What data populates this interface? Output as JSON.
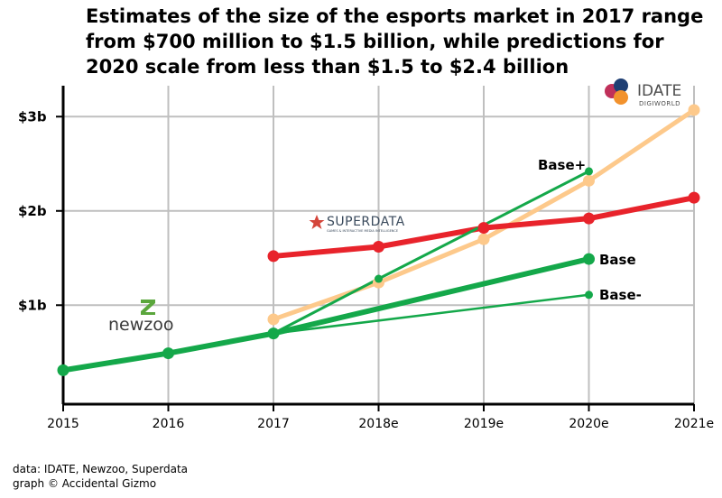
{
  "chart_data": {
    "type": "line",
    "title_lines": [
      "Estimates of the size of the esports market in 2017 range",
      "from $700 million to $1.5 billion, while predictions for",
      "2020 scale from less than $1.5 to $2.4 billion"
    ],
    "x_categories": [
      "2015",
      "2016",
      "2017",
      "2018e",
      "2019e",
      "2020e",
      "2021e"
    ],
    "y_ticks": [
      {
        "value": 1.0,
        "label": "$1b"
      },
      {
        "value": 2.0,
        "label": "$2b"
      },
      {
        "value": 3.0,
        "label": "$3b"
      }
    ],
    "ylim": [
      -0.05,
      3.3
    ],
    "series": [
      {
        "name": "IDATE",
        "color": "#fdc98b",
        "values": [
          null,
          null,
          0.85,
          1.24,
          1.7,
          2.32,
          3.07
        ]
      },
      {
        "name": "Superdata",
        "color": "#e8232b",
        "values": [
          null,
          null,
          1.52,
          1.62,
          1.82,
          1.92,
          2.14
        ]
      },
      {
        "name": "Base+",
        "color": "#14a84a",
        "values": [
          null,
          null,
          0.7,
          1.28,
          null,
          2.42,
          null
        ]
      },
      {
        "name": "Base",
        "color": "#14a84a",
        "values": [
          0.31,
          0.49,
          0.7,
          null,
          null,
          1.49,
          null
        ]
      },
      {
        "name": "Base-",
        "color": "#14a84a",
        "values": [
          null,
          null,
          0.7,
          null,
          null,
          1.11,
          null
        ]
      }
    ],
    "series_labels": [
      "Base+",
      "Base",
      "Base-"
    ],
    "logos": {
      "idate": {
        "name": "IDATE",
        "sub": "DIGIWORLD"
      },
      "superdata": {
        "name": "SUPERDATA",
        "sub": "GAMES & INTERACTIVE MEDIA INTELLIGENCE"
      },
      "newzoo": {
        "name": "newzoo"
      }
    }
  },
  "source": {
    "line1": "data: IDATE, Newzoo, Superdata",
    "line2": "graph © Accidental Gizmo"
  }
}
